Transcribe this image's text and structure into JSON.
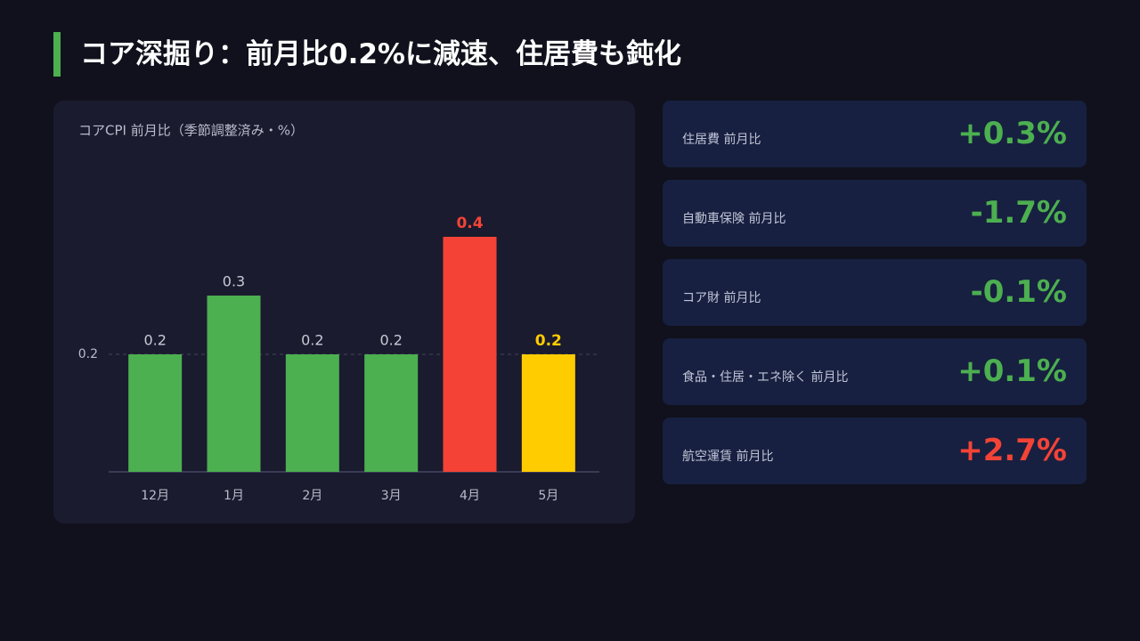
{
  "title": "コア深掘り：前月比0.2%に減速、住居費も鈍化",
  "chart_data": {
    "type": "bar",
    "title": "コアCPI 前月比（季節調整済み・%）",
    "categories": [
      "12月",
      "1月",
      "2月",
      "3月",
      "4月",
      "5月"
    ],
    "values": [
      0.2,
      0.3,
      0.2,
      0.2,
      0.4,
      0.2
    ],
    "colors": [
      "#4caf50",
      "#4caf50",
      "#4caf50",
      "#4caf50",
      "#f44336",
      "#ffcc00"
    ],
    "label_colors": [
      "#c8cad6",
      "#c8cad6",
      "#c8cad6",
      "#c8cad6",
      "#f44336",
      "#ffcc00"
    ],
    "ylim": [
      0,
      0.5
    ],
    "yticks": [
      0.2
    ],
    "grid": true
  },
  "cards": [
    {
      "label": "住居費 前月比",
      "value": "+0.3%",
      "color": "#4caf50"
    },
    {
      "label": "自動車保険 前月比",
      "value": "-1.7%",
      "color": "#4caf50"
    },
    {
      "label": "コア財 前月比",
      "value": "-0.1%",
      "color": "#4caf50"
    },
    {
      "label": "食品・住居・エネ除く 前月比",
      "value": "+0.1%",
      "color": "#4caf50"
    },
    {
      "label": "航空運賃 前月比",
      "value": "+2.7%",
      "color": "#f44336"
    }
  ]
}
